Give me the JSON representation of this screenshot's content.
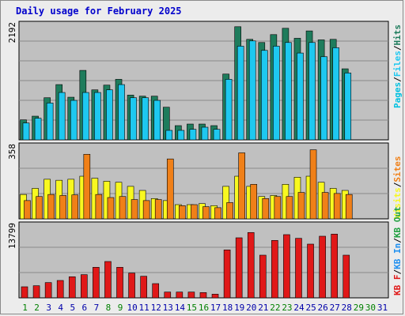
{
  "title": "Daily usage for February 2025",
  "colors": {
    "hits": "#1e7c5c",
    "files": "#1ec8f0",
    "pages": "#00c0e0",
    "visits": "#f8f820",
    "sites": "#f08018",
    "kbin": "#2090f0",
    "kbout": "#20a040",
    "kbf": "#e01818",
    "panel_bg": "#c0c0c0",
    "day_normal": "#0000aa",
    "day_weekend": "#008000"
  },
  "legend": {
    "top": [
      "Pages",
      "Files",
      "Hits"
    ],
    "mid": [
      "Visits",
      "Sites"
    ],
    "bottom": [
      "KB F",
      "KB In",
      "KB Out"
    ]
  },
  "chart_data": [
    {
      "type": "bar",
      "title": "Daily usage for February 2025",
      "ymax_label": "2192",
      "ylim": [
        0,
        2192
      ],
      "x": [
        1,
        2,
        3,
        4,
        5,
        6,
        7,
        8,
        9,
        10,
        11,
        12,
        13,
        14,
        15,
        16,
        17,
        18,
        19,
        20,
        21,
        22,
        23,
        24,
        25,
        26,
        27,
        28,
        29,
        30,
        31
      ],
      "series": [
        {
          "name": "Hits",
          "values": [
            380,
            450,
            800,
            1050,
            810,
            1320,
            950,
            1040,
            1150,
            850,
            830,
            830,
            620,
            270,
            300,
            300,
            270,
            1250,
            2150,
            1910,
            1850,
            2000,
            2120,
            1930,
            2070,
            1900,
            1910,
            1350,
            null,
            null,
            null
          ]
        },
        {
          "name": "Files",
          "values": [
            320,
            410,
            700,
            900,
            750,
            900,
            900,
            950,
            1050,
            800,
            800,
            750,
            180,
            180,
            200,
            240,
            200,
            1150,
            1780,
            1880,
            1700,
            1780,
            1850,
            1650,
            1850,
            1580,
            1750,
            1270,
            null,
            null,
            null
          ]
        },
        {
          "name": "Pages",
          "values": [
            null,
            null,
            null,
            null,
            null,
            null,
            null,
            null,
            null,
            null,
            null,
            null,
            null,
            null,
            null,
            null,
            null,
            null,
            null,
            null,
            null,
            null,
            null,
            null,
            null,
            null,
            null,
            null,
            null,
            null,
            null
          ]
        }
      ]
    },
    {
      "type": "bar",
      "ymax_label": "358",
      "ylim": [
        0,
        358
      ],
      "x": [
        1,
        2,
        3,
        4,
        5,
        6,
        7,
        8,
        9,
        10,
        11,
        12,
        13,
        14,
        15,
        16,
        17,
        18,
        19,
        20,
        21,
        22,
        23,
        24,
        25,
        26,
        27,
        28,
        29,
        30,
        31
      ],
      "series": [
        {
          "name": "Visits",
          "values": [
            120,
            150,
            195,
            190,
            195,
            210,
            200,
            185,
            180,
            160,
            140,
            100,
            90,
            70,
            70,
            75,
            65,
            160,
            210,
            160,
            110,
            115,
            170,
            205,
            210,
            180,
            150,
            140,
            null,
            null,
            null
          ]
        },
        {
          "name": "Sites",
          "values": [
            90,
            110,
            120,
            115,
            118,
            318,
            120,
            105,
            110,
            95,
            90,
            95,
            295,
            65,
            70,
            60,
            55,
            80,
            325,
            170,
            100,
            110,
            110,
            130,
            340,
            130,
            125,
            120,
            null,
            null,
            null
          ]
        }
      ]
    },
    {
      "type": "bar",
      "ymax_label": "13799",
      "ylim": [
        0,
        13799
      ],
      "x": [
        1,
        2,
        3,
        4,
        5,
        6,
        7,
        8,
        9,
        10,
        11,
        12,
        13,
        14,
        15,
        16,
        17,
        18,
        19,
        20,
        21,
        22,
        23,
        24,
        25,
        26,
        27,
        28,
        29,
        30,
        31
      ],
      "series": [
        {
          "name": "KB F",
          "values": [
            2100,
            2300,
            2900,
            3300,
            4000,
            4400,
            5800,
            6900,
            5800,
            4700,
            4100,
            2700,
            1100,
            1100,
            1100,
            1000,
            700,
            9100,
            11400,
            12400,
            8100,
            10900,
            12000,
            11300,
            10200,
            11700,
            12100,
            8100,
            null,
            null,
            null
          ]
        }
      ]
    }
  ],
  "days": [
    "1",
    "2",
    "3",
    "4",
    "5",
    "6",
    "7",
    "8",
    "9",
    "10",
    "11",
    "12",
    "13",
    "14",
    "15",
    "16",
    "17",
    "18",
    "19",
    "20",
    "21",
    "22",
    "23",
    "24",
    "25",
    "26",
    "27",
    "28",
    "29",
    "30",
    "31"
  ],
  "weekend_days": [
    1,
    2,
    8,
    9,
    15,
    16,
    22,
    23,
    29,
    30
  ]
}
